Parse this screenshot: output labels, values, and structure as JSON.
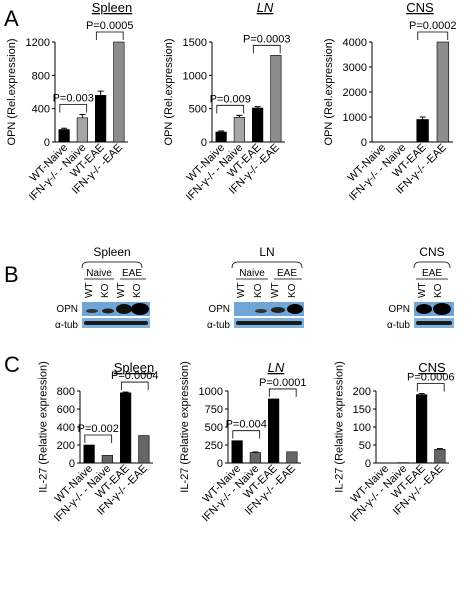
{
  "panels": [
    {
      "letter": "A"
    },
    {
      "letter": "B"
    },
    {
      "letter": "C"
    }
  ],
  "chart_data": [
    {
      "type": "bar",
      "panel": "A",
      "title": "Spleen",
      "ylabel": "OPN (Rel.expression)",
      "ylim": [
        0,
        1200
      ],
      "yticks": [
        0,
        400,
        800,
        1200
      ],
      "categories": [
        "WT-Naive",
        "IFN-γ-/- - Naive",
        "WT-EAE",
        "IFN-γ-/- -EAE"
      ],
      "values": [
        150,
        290,
        560,
        1200
      ],
      "errors": [
        15,
        40,
        50,
        0
      ],
      "bar_colors": [
        "#000000",
        "#a6a6a6",
        "#000000",
        "#8c8c8c"
      ],
      "annotations": [
        {
          "text": "P=0.003",
          "from": 0,
          "to": 1
        },
        {
          "text": "P=0.0005",
          "from": 2,
          "to": 3
        }
      ]
    },
    {
      "type": "bar",
      "panel": "A",
      "title": "LN",
      "ylabel": "OPN (Rel.expression)",
      "ylim": [
        0,
        1500
      ],
      "yticks": [
        0,
        500,
        1000,
        1500
      ],
      "categories": [
        "WT-Naive",
        "IFN-γ-/- - Naive",
        "WT-EAE",
        "IFN-γ-/- -EAE"
      ],
      "values": [
        150,
        370,
        510,
        1300
      ],
      "errors": [
        15,
        30,
        20,
        0
      ],
      "bar_colors": [
        "#000000",
        "#a6a6a6",
        "#000000",
        "#8c8c8c"
      ],
      "annotations": [
        {
          "text": "P=0.009",
          "from": 0,
          "to": 1
        },
        {
          "text": "P=0.0003",
          "from": 2,
          "to": 3
        }
      ]
    },
    {
      "type": "bar",
      "panel": "A",
      "title": "CNS",
      "ylabel": "OPN (Rel.expression)",
      "ylim": [
        0,
        4000
      ],
      "yticks": [
        0,
        1000,
        2000,
        3000,
        4000
      ],
      "categories": [
        "WT-Naive",
        "IFN-γ-/- - Naive",
        "WT-EAE",
        "IFN-γ-/- -EAE"
      ],
      "values": [
        0,
        0,
        900,
        4000
      ],
      "errors": [
        0,
        0,
        100,
        0
      ],
      "bar_colors": [
        "#000000",
        "#a6a6a6",
        "#000000",
        "#8c8c8c"
      ],
      "annotations": [
        {
          "text": "P=0.0002",
          "from": 2,
          "to": 3
        }
      ]
    },
    {
      "type": "bar",
      "panel": "C",
      "title": "Spleen",
      "ylabel": "IL-27 (Relative expression)",
      "ylim": [
        0,
        800
      ],
      "yticks": [
        0,
        200,
        400,
        600,
        800
      ],
      "categories": [
        "WT-Naive",
        "IFN-γ-/- - Naive",
        "WT-EAE",
        "IFN-γ-/- -EAE"
      ],
      "values": [
        200,
        85,
        780,
        305
      ],
      "errors": [
        0,
        0,
        8,
        0
      ],
      "bar_colors": [
        "#000000",
        "#666666",
        "#000000",
        "#666666"
      ],
      "annotations": [
        {
          "text": "P=0.002",
          "from": 0,
          "to": 1
        },
        {
          "text": "P=0.0004",
          "from": 2,
          "to": 3
        }
      ]
    },
    {
      "type": "bar",
      "panel": "C",
      "title": "LN",
      "ylabel": "IL-27 (Relative expression)",
      "ylim": [
        0,
        1000
      ],
      "yticks": [
        0,
        250,
        500,
        750,
        1000
      ],
      "categories": [
        "WT-Naive",
        "IFN-γ-/- - Naive",
        "WT-EAE",
        "IFN-γ-/- -EAE"
      ],
      "values": [
        310,
        145,
        890,
        155
      ],
      "errors": [
        0,
        8,
        0,
        0
      ],
      "bar_colors": [
        "#000000",
        "#666666",
        "#000000",
        "#666666"
      ],
      "annotations": [
        {
          "text": "P=0.004",
          "from": 0,
          "to": 1
        },
        {
          "text": "P=0.0001",
          "from": 2,
          "to": 3
        }
      ]
    },
    {
      "type": "bar",
      "panel": "C",
      "title": "CNS",
      "ylabel": "IL-27 (Relative expression)",
      "ylim": [
        0,
        200
      ],
      "yticks": [
        0,
        50,
        100,
        150,
        200
      ],
      "categories": [
        "WT-Naive",
        "IFN-γ-/- - Naive",
        "WT-EAE",
        "IFN-γ-/- -EAE"
      ],
      "values": [
        0,
        1,
        190,
        38
      ],
      "errors": [
        0,
        0,
        3,
        2
      ],
      "bar_colors": [
        "#000000",
        "#666666",
        "#000000",
        "#666666"
      ],
      "annotations": [
        {
          "text": "P=0.0006",
          "from": 2,
          "to": 3
        }
      ]
    }
  ],
  "blots": [
    {
      "title": "Spleen",
      "groups": [
        "Naive",
        "EAE"
      ],
      "lanes": [
        "WT",
        "KO",
        "WT",
        "KO"
      ],
      "rows": [
        "OPN",
        "α-tub"
      ]
    },
    {
      "title": "LN",
      "groups": [
        "Naive",
        "EAE"
      ],
      "lanes": [
        "WT",
        "KO",
        "WT",
        "KO"
      ],
      "rows": [
        "OPN",
        "α-tub"
      ]
    },
    {
      "title": "CNS",
      "groups": [
        "EAE"
      ],
      "lanes": [
        "WT",
        "KO"
      ],
      "rows": [
        "OPN",
        "α-tub"
      ]
    }
  ]
}
